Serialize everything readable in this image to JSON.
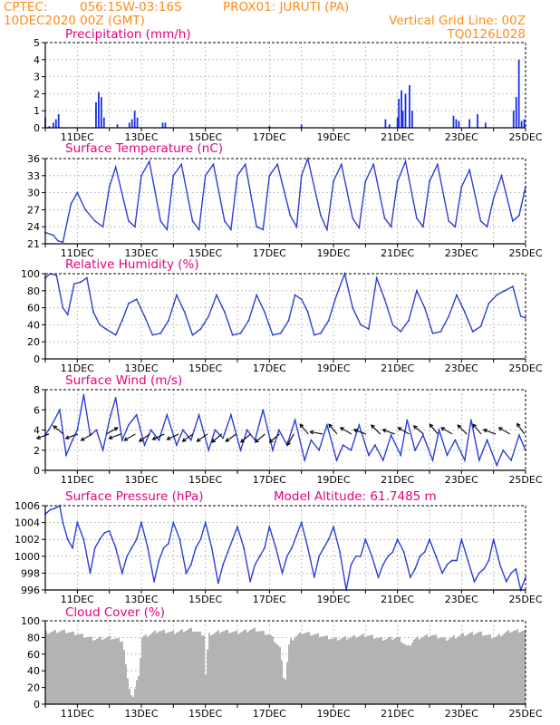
{
  "header": {
    "source": "CPTEC:",
    "coords": "056:15W-03:16S",
    "station": "PROX01: JURUTI (PA)",
    "run": "10DEC2020 00Z (GMT)",
    "grid_note": "Vertical Grid Line: 00Z",
    "code": "TQ0126L028"
  },
  "colors": {
    "header": "#ff8c1a",
    "title": "#e6007e",
    "line": "#2c3fd4",
    "bar": "#1c2fe0",
    "cloud": "#b3b3b3",
    "arrow": "#000000"
  },
  "date_labels": [
    "11DEC",
    "13DEC",
    "15DEC",
    "17DEC",
    "19DEC",
    "21DEC",
    "23DEC",
    "25DEC"
  ],
  "chart_data": [
    {
      "id": "precip",
      "type": "bar",
      "title": "Precipitation (mm/h)",
      "ylim": [
        0,
        5
      ],
      "yticks": [
        "0",
        "1",
        "2",
        "3",
        "4",
        "5"
      ],
      "x": [
        "10DEC00Z",
        "10DEC03Z",
        "10DEC06Z",
        "10DEC08Z",
        "10DEC10Z",
        "11DEC14Z",
        "11DEC16Z",
        "11DEC18Z",
        "11DEC20Z",
        "12DEC06Z",
        "12DEC15Z",
        "12DEC17Z",
        "12DEC19Z",
        "12DEC21Z",
        "13DEC16Z",
        "13DEC18Z",
        "17DEC00Z",
        "18DEC00Z",
        "20DEC15Z",
        "20DEC18Z",
        "21DEC00Z",
        "21DEC01Z",
        "21DEC03Z",
        "21DEC04Z",
        "21DEC06Z",
        "21DEC09Z",
        "21DEC11Z",
        "22DEC18Z",
        "22DEC20Z",
        "22DEC22Z",
        "23DEC06Z",
        "23DEC12Z",
        "23DEC18Z",
        "24DEC15Z",
        "24DEC17Z",
        "24DEC19Z",
        "24DEC21Z",
        "24DEC23Z"
      ],
      "values": [
        0.6,
        0.1,
        0.3,
        0.5,
        0.8,
        1.5,
        2.1,
        1.8,
        0.6,
        0.2,
        0.3,
        0.5,
        1.0,
        0.6,
        0.3,
        0.3,
        0.1,
        0.2,
        0.5,
        0.2,
        0.6,
        1.7,
        2.2,
        1.0,
        2.0,
        2.5,
        1.0,
        0.7,
        0.5,
        0.4,
        0.5,
        0.8,
        0.3,
        1.0,
        1.8,
        4.0,
        0.4,
        0.5
      ]
    },
    {
      "id": "temp",
      "type": "line",
      "title": "Surface Temperature (nC)",
      "ylim": [
        21,
        36
      ],
      "yticks": [
        "21",
        "24",
        "27",
        "30",
        "33",
        "36"
      ],
      "x_days": [
        0.0,
        0.25,
        0.4,
        0.55,
        0.8,
        1.0,
        1.25,
        1.55,
        1.8,
        2.0,
        2.2,
        2.6,
        2.8,
        3.0,
        3.25,
        3.6,
        3.8,
        4.0,
        4.25,
        4.6,
        4.8,
        5.0,
        5.25,
        5.6,
        5.8,
        6.0,
        6.25,
        6.6,
        6.8,
        7.0,
        7.25,
        7.65,
        7.85,
        8.0,
        8.2,
        8.6,
        8.8,
        9.0,
        9.25,
        9.6,
        9.8,
        10.0,
        10.25,
        10.6,
        10.8,
        11.0,
        11.25,
        11.6,
        11.8,
        12.0,
        12.25,
        12.6,
        12.8,
        13.0,
        13.25,
        13.6,
        13.8,
        14.0,
        14.25,
        14.6,
        14.8,
        15.0
      ],
      "values": [
        23,
        22.5,
        21.5,
        21.3,
        28,
        30,
        27,
        25,
        24,
        31,
        34.5,
        25,
        24,
        33,
        35.5,
        25,
        23.5,
        33,
        35,
        25,
        23.5,
        33,
        35,
        25,
        23.5,
        33,
        35,
        24,
        23.5,
        33,
        35,
        26,
        24,
        33,
        36,
        26,
        23.5,
        32,
        35,
        25.5,
        23.8,
        32,
        35,
        25.5,
        24,
        32,
        35.5,
        25.5,
        24,
        32,
        35,
        25,
        24,
        31,
        34,
        25,
        24,
        29,
        33,
        25,
        26,
        31
      ]
    },
    {
      "id": "rh",
      "type": "line",
      "title": "Relative Humidity (%)",
      "ylim": [
        0,
        100
      ],
      "yticks": [
        "0",
        "20",
        "40",
        "60",
        "80",
        "100"
      ],
      "x_days": [
        0.0,
        0.15,
        0.35,
        0.55,
        0.7,
        0.9,
        1.1,
        1.3,
        1.5,
        1.7,
        1.9,
        2.2,
        2.4,
        2.6,
        2.85,
        3.1,
        3.35,
        3.6,
        3.85,
        4.1,
        4.35,
        4.6,
        4.85,
        5.1,
        5.35,
        5.6,
        5.85,
        6.1,
        6.35,
        6.6,
        6.85,
        7.1,
        7.35,
        7.6,
        7.8,
        8.0,
        8.2,
        8.4,
        8.6,
        8.85,
        9.1,
        9.35,
        9.6,
        9.85,
        10.1,
        10.35,
        10.6,
        10.85,
        11.1,
        11.35,
        11.6,
        11.85,
        12.1,
        12.35,
        12.6,
        12.85,
        13.1,
        13.35,
        13.6,
        13.85,
        14.1,
        14.35,
        14.6,
        14.85,
        15.0
      ],
      "values": [
        95,
        100,
        98,
        60,
        52,
        88,
        90,
        95,
        55,
        40,
        35,
        28,
        45,
        65,
        70,
        50,
        28,
        30,
        45,
        75,
        55,
        28,
        35,
        50,
        75,
        55,
        28,
        30,
        45,
        75,
        55,
        28,
        30,
        45,
        75,
        70,
        55,
        28,
        30,
        45,
        75,
        100,
        60,
        40,
        35,
        95,
        70,
        40,
        32,
        45,
        80,
        60,
        30,
        32,
        50,
        75,
        55,
        32,
        38,
        65,
        75,
        80,
        85,
        50,
        48
      ]
    },
    {
      "id": "wind",
      "type": "line",
      "title": "Surface Wind (m/s)",
      "ylim": [
        0,
        8
      ],
      "yticks": [
        "0",
        "2",
        "4",
        "6",
        "8"
      ],
      "x_days": [
        0.0,
        0.2,
        0.45,
        0.65,
        0.85,
        1.0,
        1.2,
        1.4,
        1.6,
        1.8,
        2.0,
        2.2,
        2.4,
        2.6,
        2.85,
        3.1,
        3.3,
        3.55,
        3.8,
        4.1,
        4.3,
        4.55,
        4.8,
        5.1,
        5.3,
        5.55,
        5.8,
        6.1,
        6.3,
        6.55,
        6.8,
        7.1,
        7.3,
        7.55,
        7.8,
        8.1,
        8.3,
        8.55,
        8.8,
        9.1,
        9.3,
        9.55,
        9.8,
        10.1,
        10.3,
        10.55,
        10.8,
        11.1,
        11.3,
        11.55,
        11.8,
        12.1,
        12.3,
        12.55,
        12.8,
        13.1,
        13.3,
        13.55,
        13.8,
        14.1,
        14.3,
        14.55,
        14.8,
        15.0
      ],
      "values": [
        3.5,
        4.5,
        6.0,
        1.5,
        3.0,
        4.0,
        7.5,
        3.5,
        4.0,
        2.0,
        5.0,
        7.2,
        3.0,
        4.5,
        5.5,
        2.5,
        4.0,
        3.0,
        5.5,
        2.5,
        4.0,
        3.0,
        5.5,
        2.0,
        4.0,
        3.2,
        5.5,
        2.0,
        4.0,
        3.0,
        6.0,
        2.0,
        4.0,
        2.5,
        5.0,
        1.0,
        3.0,
        2.0,
        4.5,
        1.0,
        2.5,
        2.0,
        4.5,
        1.5,
        2.5,
        1.0,
        3.5,
        1.5,
        5.0,
        2.0,
        3.5,
        1.0,
        4.0,
        1.5,
        3.0,
        1.0,
        5.0,
        1.0,
        3.0,
        0.5,
        2.0,
        1.0,
        3.5,
        2.0
      ],
      "arrows_days": [
        0.0,
        0.45,
        0.9,
        1.35,
        1.8,
        2.25,
        2.7,
        3.15,
        3.6,
        4.05,
        4.5,
        4.95,
        5.4,
        5.85,
        6.3,
        6.75,
        7.2,
        7.65,
        8.1,
        8.55,
        9.0,
        9.45,
        9.9,
        10.35,
        10.8,
        11.25,
        11.7,
        12.15,
        12.6,
        13.05,
        13.5,
        13.95,
        14.4,
        14.85
      ],
      "arrows_deg": [
        200,
        140,
        200,
        210,
        30,
        200,
        210,
        215,
        205,
        205,
        215,
        215,
        220,
        215,
        220,
        220,
        220,
        240,
        130,
        170,
        130,
        150,
        160,
        135,
        160,
        150,
        140,
        130,
        150,
        135,
        130,
        160,
        150,
        125
      ]
    },
    {
      "id": "pres",
      "type": "line",
      "title": "Surface Pressure (hPa)",
      "annotation": "Model Altitude: 61.7485 m",
      "ylim": [
        996,
        1006
      ],
      "yticks": [
        "996",
        "998",
        "1000",
        "1002",
        "1004",
        "1006"
      ],
      "x_days": [
        0.0,
        0.15,
        0.3,
        0.45,
        0.55,
        0.7,
        0.85,
        1.0,
        1.2,
        1.4,
        1.55,
        1.7,
        1.85,
        2.0,
        2.2,
        2.4,
        2.55,
        2.7,
        2.85,
        3.0,
        3.2,
        3.4,
        3.55,
        3.7,
        3.85,
        4.0,
        4.2,
        4.4,
        4.55,
        4.7,
        4.85,
        5.0,
        5.2,
        5.4,
        5.55,
        5.7,
        5.85,
        6.0,
        6.2,
        6.4,
        6.55,
        6.7,
        6.85,
        7.0,
        7.2,
        7.4,
        7.55,
        7.7,
        7.85,
        8.0,
        8.2,
        8.4,
        8.55,
        8.7,
        8.85,
        9.0,
        9.2,
        9.4,
        9.55,
        9.7,
        9.85,
        10.0,
        10.2,
        10.4,
        10.55,
        10.7,
        10.85,
        11.0,
        11.2,
        11.4,
        11.55,
        11.7,
        11.85,
        12.0,
        12.2,
        12.4,
        12.55,
        12.7,
        12.85,
        13.0,
        13.2,
        13.4,
        13.55,
        13.7,
        13.85,
        14.0,
        14.2,
        14.4,
        14.55,
        14.7,
        14.85,
        15.0
      ],
      "values": [
        1005,
        1005.5,
        1005.7,
        1006,
        1004,
        1002,
        1001,
        1004,
        1002,
        998,
        1001,
        1002,
        1002.8,
        1003,
        1001,
        998,
        1000,
        1001,
        1002,
        1004,
        1001,
        997,
        999.5,
        1001,
        1001.5,
        1004,
        1002,
        998,
        999,
        1001,
        1002,
        1004,
        1001,
        996.8,
        999,
        1000.5,
        1002,
        1003.5,
        1001,
        997,
        999,
        1000,
        1001,
        1003.5,
        1001,
        998,
        1000,
        1001,
        1002.5,
        1004,
        1001,
        997.5,
        1000,
        1001,
        1002,
        1003.5,
        1000.5,
        996,
        999,
        1000,
        1000,
        1002,
        1000,
        997.5,
        999,
        1000,
        1000.5,
        1002,
        1000.5,
        997.5,
        998.5,
        1000,
        1000.5,
        1002,
        1000,
        998,
        999,
        999.5,
        999.5,
        1002,
        999.5,
        997,
        998,
        998.5,
        999.5,
        1002,
        999,
        997,
        998,
        998.5,
        996,
        997.5
      ]
    },
    {
      "id": "cloud",
      "type": "area",
      "title": "Cloud Cover (%)",
      "ylim": [
        0,
        100
      ],
      "yticks": [
        "0",
        "20",
        "40",
        "60",
        "80",
        "100"
      ],
      "x_days": [
        0.0,
        0.5,
        1.0,
        1.5,
        2.0,
        2.4,
        2.55,
        2.7,
        2.9,
        3.0,
        3.5,
        4.0,
        4.5,
        4.95,
        5.0,
        5.05,
        5.5,
        6.0,
        6.5,
        7.0,
        7.3,
        7.45,
        7.6,
        8.0,
        8.5,
        9.0,
        9.5,
        10.0,
        10.5,
        11.0,
        11.3,
        11.5,
        12.0,
        12.5,
        13.0,
        13.5,
        14.0,
        14.5,
        15.0
      ],
      "values": [
        88,
        90,
        86,
        80,
        82,
        78,
        30,
        8,
        40,
        82,
        90,
        88,
        92,
        85,
        8,
        85,
        90,
        88,
        92,
        85,
        70,
        25,
        78,
        88,
        85,
        80,
        82,
        85,
        80,
        82,
        70,
        80,
        85,
        80,
        85,
        88,
        82,
        90,
        90
      ]
    }
  ]
}
